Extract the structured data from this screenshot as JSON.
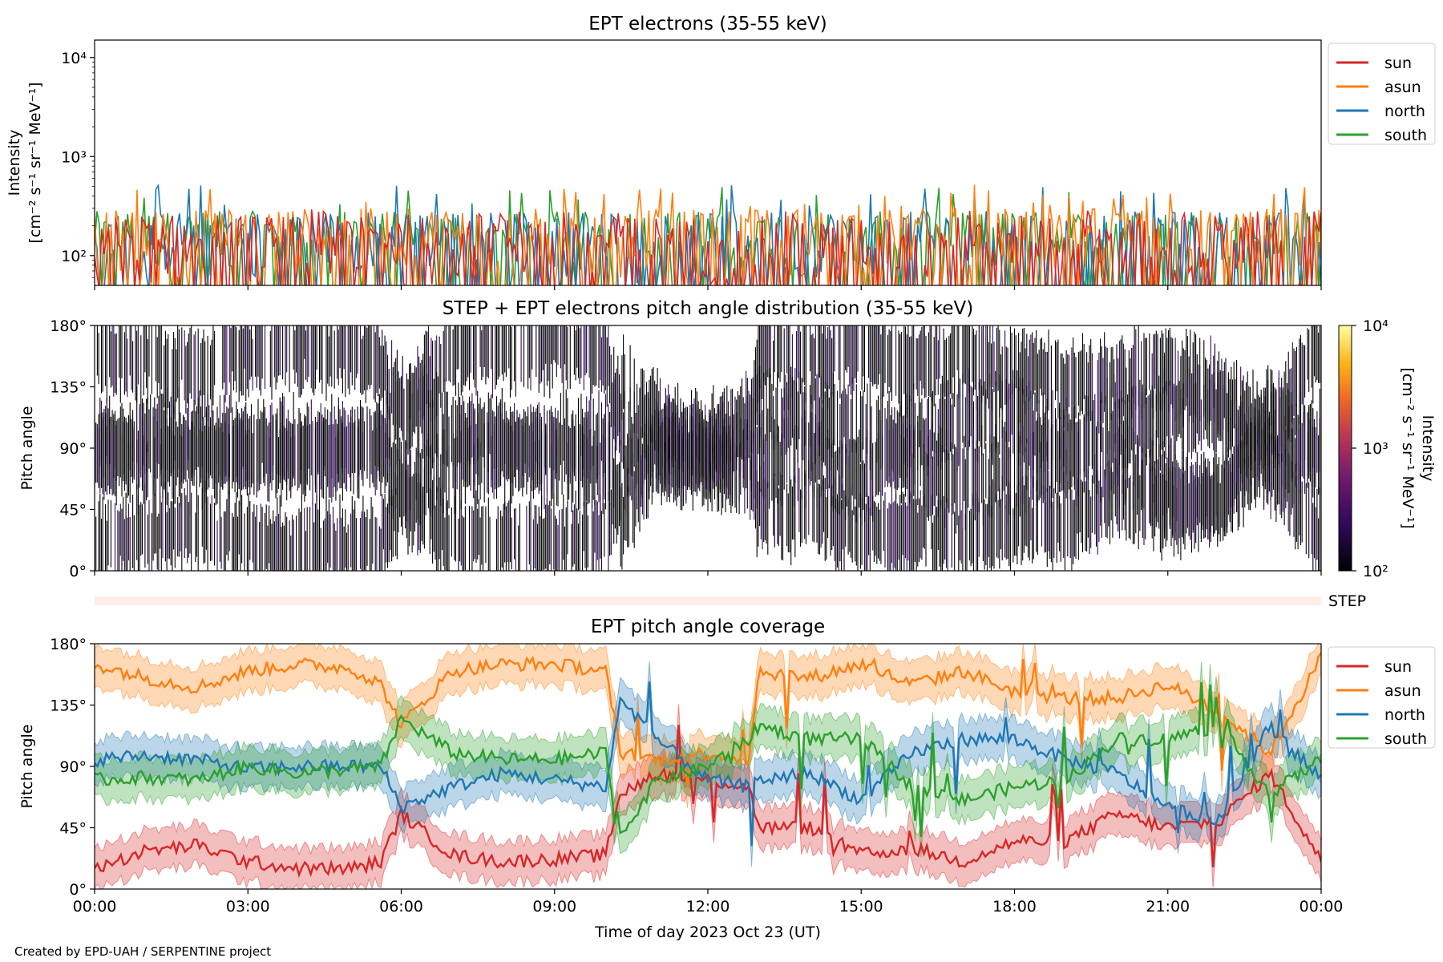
{
  "credit": "Created by EPD-UAH / SERPENTINE project",
  "xlabel": "Time of day 2023 Oct 23 (UT)",
  "colors": {
    "sun": "#d62728",
    "asun": "#ff7f0e",
    "north": "#1f77b4",
    "south": "#2ca02c"
  },
  "chart_data": [
    {
      "type": "line",
      "title": "EPT electrons (35-55 keV)",
      "ylabel_line1": "Intensity",
      "ylabel_line2": "[cm⁻² s⁻¹ sr⁻¹ MeV⁻¹]",
      "yscale": "log",
      "ylim": [
        50,
        15000
      ],
      "ytick_labels": [
        "10²",
        "10³",
        "10⁴"
      ],
      "ytick_values": [
        100,
        1000,
        10000
      ],
      "xlim_hours": [
        0,
        24
      ],
      "legend": [
        "sun",
        "asun",
        "north",
        "south"
      ],
      "legend_position": "outside upper right",
      "series": [
        {
          "name": "sun",
          "typical_range": [
            50,
            250
          ],
          "peak": 300
        },
        {
          "name": "asun",
          "typical_range": [
            60,
            300
          ],
          "peak": 520
        },
        {
          "name": "north",
          "typical_range": [
            60,
            280
          ],
          "peak": 520
        },
        {
          "name": "south",
          "typical_range": [
            60,
            280
          ],
          "peak": 500
        }
      ]
    },
    {
      "type": "heatmap",
      "title": "STEP + EPT electrons pitch angle distribution (35-55 keV)",
      "ylabel": "Pitch angle",
      "ylim": [
        0,
        180
      ],
      "ytick_labels": [
        "0°",
        "45°",
        "90°",
        "135°",
        "180°"
      ],
      "colorbar": {
        "label_line1": "Intensity",
        "label_line2": "[cm⁻² s⁻¹ sr⁻¹ MeV⁻¹]",
        "scale": "log",
        "range": [
          100,
          10000
        ],
        "tick_labels": [
          "10²",
          "10³",
          "10⁴"
        ],
        "colormap": "inferno"
      },
      "strip_label": "STEP"
    },
    {
      "type": "line",
      "title": "EPT pitch angle coverage",
      "ylabel": "Pitch angle",
      "ylim": [
        0,
        180
      ],
      "ytick_labels": [
        "0°",
        "45°",
        "90°",
        "135°",
        "180°"
      ],
      "xtick_labels": [
        "00:00",
        "03:00",
        "06:00",
        "09:00",
        "12:00",
        "15:00",
        "18:00",
        "21:00",
        "00:00"
      ],
      "legend": [
        "sun",
        "asun",
        "north",
        "south"
      ],
      "legend_position": "outside upper right",
      "series": [
        {
          "name": "sun",
          "hour": [
            0,
            1,
            2,
            3,
            4,
            5,
            5.6,
            6,
            7,
            8,
            9,
            10,
            10.3,
            11,
            12,
            12.8,
            13,
            14,
            15,
            16,
            17,
            18,
            19,
            20,
            21,
            22,
            23,
            24
          ],
          "values": [
            15,
            28,
            32,
            20,
            15,
            15,
            20,
            55,
            25,
            20,
            22,
            25,
            70,
            85,
            80,
            75,
            45,
            45,
            25,
            30,
            20,
            35,
            35,
            55,
            45,
            50,
            85,
            20
          ]
        },
        {
          "name": "asun",
          "hour": [
            0,
            1,
            2,
            3,
            4,
            5,
            5.6,
            6,
            7,
            8,
            9,
            10,
            10.3,
            11,
            12,
            12.8,
            13,
            14,
            15,
            16,
            17,
            18,
            19,
            20,
            21,
            22,
            23,
            24
          ],
          "values": [
            165,
            155,
            148,
            160,
            165,
            162,
            150,
            120,
            160,
            165,
            165,
            160,
            100,
            95,
            100,
            95,
            160,
            155,
            165,
            150,
            160,
            145,
            140,
            140,
            150,
            130,
            100,
            170
          ]
        },
        {
          "name": "north",
          "hour": [
            0,
            1,
            2,
            3,
            4,
            5,
            5.6,
            6,
            7,
            8,
            9,
            10,
            10.3,
            11,
            12,
            12.8,
            13,
            14,
            15,
            16,
            17,
            18,
            19,
            20,
            21,
            22,
            23,
            24
          ],
          "values": [
            95,
            98,
            95,
            88,
            90,
            90,
            90,
            60,
            75,
            85,
            80,
            75,
            140,
            110,
            80,
            75,
            80,
            85,
            65,
            100,
            110,
            110,
            95,
            85,
            60,
            50,
            120,
            80
          ]
        },
        {
          "name": "south",
          "hour": [
            0,
            1,
            2,
            3,
            4,
            5,
            5.6,
            6,
            7,
            8,
            9,
            10,
            10.3,
            11,
            12,
            12.8,
            13,
            14,
            15,
            16,
            17,
            18,
            19,
            20,
            21,
            22,
            23,
            24
          ],
          "values": [
            80,
            82,
            80,
            90,
            85,
            88,
            90,
            125,
            100,
            95,
            95,
            100,
            40,
            80,
            90,
            110,
            120,
            110,
            110,
            75,
            65,
            75,
            80,
            110,
            110,
            120,
            70,
            95
          ]
        }
      ],
      "uncertainty_band_deg": 15
    }
  ]
}
